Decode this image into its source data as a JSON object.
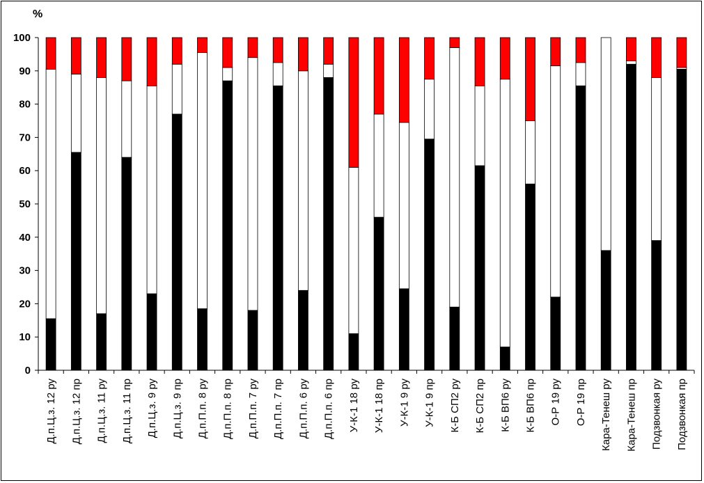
{
  "chart_data": {
    "type": "bar",
    "stacked": true,
    "y_unit": "%",
    "ylim": [
      0,
      100
    ],
    "yticks": [
      0,
      10,
      20,
      30,
      40,
      50,
      60,
      70,
      80,
      90,
      100
    ],
    "grid": false,
    "legend": "none",
    "categories": [
      "Д.п.Ц.з. 12 ру",
      "Д.п.Ц.з. 12 пр",
      "Д.п.Ц.з. 11 ру",
      "Д.п.Ц.з. 11 пр",
      "Д.п.Ц.з. 9 ру",
      "Д.п.Ц.з. 9 пр",
      "Д.п.П.п. 8 ру",
      "Д.п.П.п. 8 пр",
      "Д.п.П.п. 7 ру",
      "Д.п.П.п. 7 пр",
      "Д.п.П.п. 6 ру",
      "Д.п.П.п. 6 пр",
      "У-К-1 18 ру",
      "У-К-1 18 пр",
      "У-К-1 9 ру",
      "У-К-1 9 пр",
      "К-Б СП2 ру",
      "К-Б СП2 пр",
      "К-Б ВП6 ру",
      "К-Б ВП6 пр",
      "О-Р 19 ру",
      "О-Р 19 пр",
      "Кара-Тенеш ру",
      "Кара-Тенеш пр",
      "Подзвонкая ру",
      "Подзвонкая пр"
    ],
    "series": [
      {
        "color": "#000000",
        "values": [
          15.5,
          65.5,
          17,
          64,
          23,
          77,
          18.5,
          87,
          18,
          85.5,
          24,
          88,
          11,
          46,
          24.5,
          69.5,
          19,
          61.5,
          7,
          56,
          22,
          85.5,
          36,
          92,
          39,
          90.5
        ]
      },
      {
        "color": "#ffffff",
        "values": [
          75,
          23.5,
          71,
          23,
          62.5,
          15,
          77,
          4,
          76,
          7,
          66,
          4,
          50,
          31,
          50,
          18,
          78,
          24,
          80.5,
          19,
          69.5,
          7,
          64,
          1,
          49,
          0.5
        ]
      },
      {
        "color": "#ff0000",
        "values": [
          9.5,
          11,
          12,
          13,
          14.5,
          8,
          4.5,
          9,
          6,
          7.5,
          10,
          8,
          39,
          23,
          25.5,
          12.5,
          3,
          14.5,
          12.5,
          25,
          8.5,
          7.5,
          0,
          7,
          12,
          9
        ]
      }
    ]
  }
}
